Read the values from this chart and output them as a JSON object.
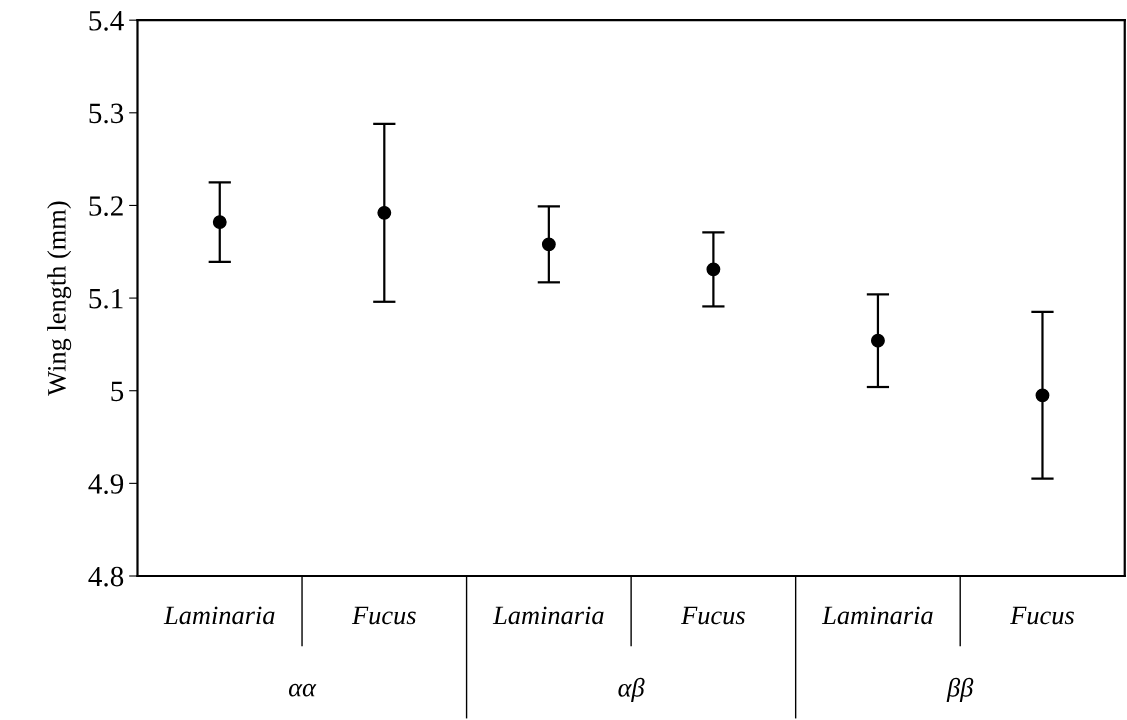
{
  "chart_data": {
    "type": "scatter",
    "ylabel": "Wing length (mm)",
    "categories": [
      "Laminaria",
      "Fucus",
      "Laminaria",
      "Fucus",
      "Laminaria",
      "Fucus"
    ],
    "values": [
      5.182,
      5.192,
      5.158,
      5.131,
      5.054,
      4.995
    ],
    "errors": [
      0.043,
      0.096,
      0.041,
      0.04,
      0.05,
      0.09
    ],
    "color": "#000000",
    "marker": "circle",
    "ylim": [
      4.8,
      5.4
    ],
    "yticks": [
      4.8,
      4.9,
      5,
      5.1,
      5.2,
      5.3,
      5.4
    ],
    "annotations": [
      "αα",
      "αβ",
      "ββ"
    ],
    "grid": false
  }
}
